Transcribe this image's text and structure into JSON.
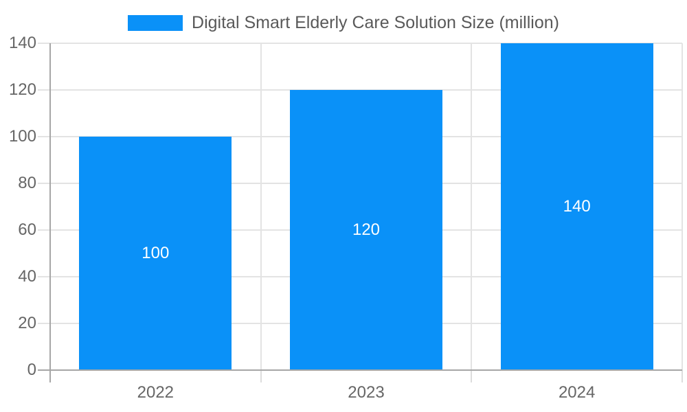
{
  "chart_data": {
    "type": "bar",
    "title": "Digital Smart Elderly Care Solution Size (million)",
    "categories": [
      "2022",
      "2023",
      "2024"
    ],
    "values": [
      100,
      120,
      140
    ],
    "bar_labels": [
      "100",
      "120",
      "140"
    ],
    "series": [
      {
        "name": "Digital Smart Elderly Care Solution Size (million)",
        "values": [
          100,
          120,
          140
        ]
      }
    ],
    "xlabel": "",
    "ylabel": "",
    "ylim": [
      0,
      140
    ],
    "yticks": [
      0,
      20,
      40,
      60,
      80,
      100,
      120,
      140
    ],
    "grid": true,
    "legend_position": "top-center",
    "bar_color": "#0a91f8",
    "bar_label_color": "#ffffff",
    "title_color": "#595959",
    "axis_label_color": "#666666",
    "gridline_color": "#e3e3e3",
    "tick_color": "#dddddd",
    "axis_line_color": "#a6a6a6"
  }
}
